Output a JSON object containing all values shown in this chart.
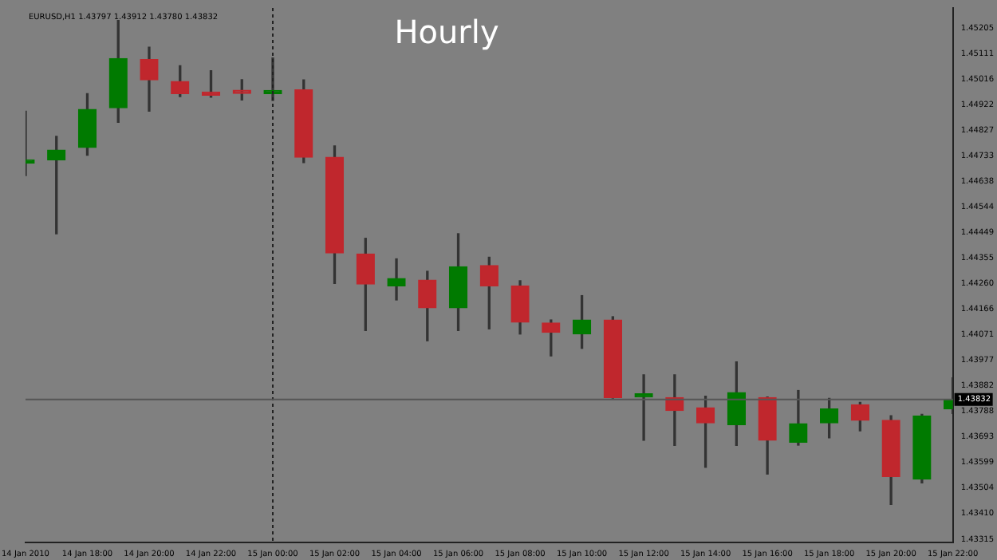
{
  "chart_data": {
    "type": "candlestick",
    "title": "Hourly",
    "annotations": [
      "EURUSD,H1 1.43797 1.43912 1.43780 1.43832"
    ],
    "categories": [
      "14 Jan 2010",
      null,
      "14 Jan 18:00",
      null,
      "14 Jan 20:00",
      null,
      "14 Jan 22:00",
      null,
      "15 Jan 00:00",
      null,
      "15 Jan 02:00",
      null,
      "15 Jan 04:00",
      null,
      "15 Jan 06:00",
      null,
      "15 Jan 08:00",
      null,
      "15 Jan 10:00",
      null,
      "15 Jan 12:00",
      null,
      "15 Jan 14:00",
      null,
      "15 Jan 16:00",
      null,
      "15 Jan 18:00",
      null,
      "15 Jan 20:00",
      null,
      "15 Jan 22:00"
    ],
    "ohlc": [
      [
        1.44706,
        1.44898,
        1.4466,
        1.44718
      ],
      [
        1.44718,
        1.44805,
        1.44445,
        1.44754
      ],
      [
        1.44764,
        1.44963,
        1.44735,
        1.44905
      ],
      [
        1.44911,
        1.45234,
        1.44857,
        1.45093
      ],
      [
        1.45089,
        1.45135,
        1.44898,
        1.45014
      ],
      [
        1.45008,
        1.45066,
        1.44952,
        1.44963
      ],
      [
        1.44969,
        1.45048,
        1.4495,
        1.44957
      ],
      [
        1.44965,
        1.45015,
        1.4494,
        1.44964
      ],
      [
        1.44963,
        1.45095,
        1.44938,
        1.44975
      ],
      [
        1.44977,
        1.45014,
        1.44708,
        1.44728
      ],
      [
        1.44728,
        1.4477,
        1.44261,
        1.44374
      ],
      [
        1.4437,
        1.44428,
        1.44087,
        1.44259
      ],
      [
        1.44252,
        1.44352,
        1.442,
        1.44279
      ],
      [
        1.44273,
        1.44306,
        1.44049,
        1.44171
      ],
      [
        1.44171,
        1.44445,
        1.44087,
        1.44323
      ],
      [
        1.44327,
        1.44358,
        1.44093,
        1.44252
      ],
      [
        1.44252,
        1.44271,
        1.44074,
        1.44118
      ],
      [
        1.44115,
        1.44126,
        1.43993,
        1.4408
      ],
      [
        1.44074,
        1.44216,
        1.44021,
        1.44126
      ],
      [
        1.44126,
        1.44138,
        1.43837,
        1.43839
      ],
      [
        1.43841,
        1.43923,
        1.43681,
        1.43844
      ],
      [
        1.43839,
        1.43923,
        1.43662,
        1.43791
      ],
      [
        1.43801,
        1.43844,
        1.43581,
        1.43745
      ],
      [
        1.43739,
        1.43971,
        1.43662,
        1.43857
      ],
      [
        1.43839,
        1.43841,
        1.43556,
        1.43681
      ],
      [
        1.43674,
        1.43865,
        1.43663,
        1.43742
      ],
      [
        1.43745,
        1.43836,
        1.4369,
        1.43797
      ],
      [
        1.43812,
        1.43821,
        1.43716,
        1.43755
      ],
      [
        1.43755,
        1.43772,
        1.43444,
        1.43547
      ],
      [
        1.43537,
        1.43777,
        1.43523,
        1.43771
      ],
      [
        1.43797,
        1.43912,
        1.4378,
        1.43832
      ]
    ],
    "colors": [
      "#007a00",
      "#007a00",
      "#007a00",
      "#007a00",
      "#c0272d",
      "#c0272d",
      "#c0272d",
      "#c0272d",
      "#007a00",
      "#c0272d",
      "#c0272d",
      "#c0272d",
      "#007a00",
      "#c0272d",
      "#007a00",
      "#c0272d",
      "#c0272d",
      "#c0272d",
      "#007a00",
      "#c0272d",
      "#007a00",
      "#c0272d",
      "#c0272d",
      "#007a00",
      "#c0272d",
      "#007a00",
      "#007a00",
      "#c0272d",
      "#c0272d",
      "#007a00",
      "#007a00"
    ],
    "ylim": [
      1.43303,
      1.4528
    ],
    "yticks": [
      1.45205,
      1.45111,
      1.45016,
      1.44922,
      1.44827,
      1.44733,
      1.44638,
      1.44544,
      1.44449,
      1.44355,
      {
        "value": 1.4426,
        "label": "1.44260"
      },
      1.44166,
      1.44071,
      1.43977,
      1.43882,
      1.43788,
      1.43693,
      1.43599,
      1.43504,
      {
        "value": 1.4341,
        "label": "1.43410"
      },
      1.43315
    ],
    "ref_lines": [
      {
        "axis": "x",
        "value": "15 Jan 00:00",
        "label": null,
        "line_style": "dotted"
      },
      {
        "axis": "y",
        "value": 1.43832,
        "label": "1.43832"
      }
    ],
    "grid": false,
    "legend": false
  }
}
